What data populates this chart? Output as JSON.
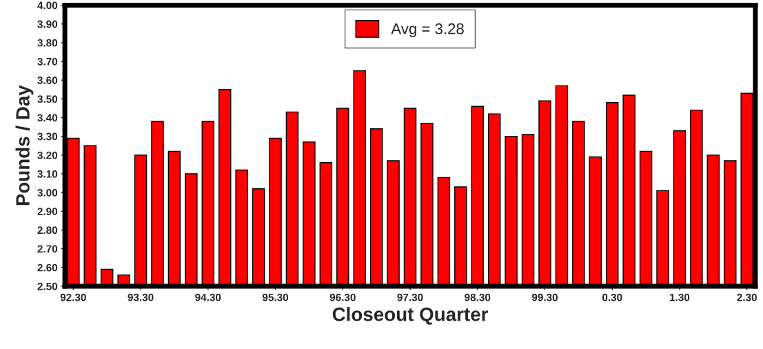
{
  "chart_data": {
    "type": "bar",
    "xlabel": "Closeout Quarter",
    "ylabel": "Pounds / Day",
    "categories": [
      "92.30",
      null,
      null,
      null,
      "93.30",
      null,
      null,
      null,
      "94.30",
      null,
      null,
      null,
      "95.30",
      null,
      null,
      null,
      "96.30",
      null,
      null,
      null,
      "97.30",
      null,
      null,
      null,
      "98.30",
      null,
      null,
      null,
      "99.30",
      null,
      null,
      null,
      "0.30",
      null,
      null,
      null,
      "1.30",
      null,
      null,
      null,
      "2.30"
    ],
    "series": [
      {
        "name": "Avg = 3.28",
        "color": "#ff0000",
        "values": [
          3.29,
          3.25,
          2.59,
          2.56,
          3.2,
          3.38,
          3.22,
          3.1,
          3.38,
          3.55,
          3.12,
          3.02,
          3.29,
          3.43,
          3.27,
          3.16,
          3.45,
          3.65,
          3.34,
          3.17,
          3.45,
          3.37,
          3.08,
          3.03,
          3.46,
          3.42,
          3.3,
          3.31,
          3.49,
          3.57,
          3.38,
          3.19,
          3.48,
          3.52,
          3.22,
          3.01,
          3.33,
          3.44,
          3.2,
          3.17,
          3.53
        ]
      }
    ],
    "ylim": [
      2.5,
      4.0
    ],
    "yticks": [
      {
        "value": 2.5,
        "label": "2.50"
      },
      {
        "value": 2.6,
        "label": "2.60"
      },
      {
        "value": 2.7,
        "label": "2.70"
      },
      {
        "value": 2.8,
        "label": "2.80"
      },
      {
        "value": 2.9,
        "label": "2.90"
      },
      {
        "value": 3.0,
        "label": "3.00"
      },
      {
        "value": 3.1,
        "label": "3.10"
      },
      {
        "value": 3.2,
        "label": "3.20"
      },
      {
        "value": 3.3,
        "label": "3.30"
      },
      {
        "value": 3.4,
        "label": "3.40"
      },
      {
        "value": 3.5,
        "label": "3.50"
      },
      {
        "value": 3.6,
        "label": "3.60"
      },
      {
        "value": 3.7,
        "label": "3.70"
      },
      {
        "value": 3.8,
        "label": "3.80"
      },
      {
        "value": 3.9,
        "label": "3.90"
      },
      {
        "value": 4.0,
        "label": "4.00"
      }
    ],
    "grid": false,
    "legend": "top"
  }
}
